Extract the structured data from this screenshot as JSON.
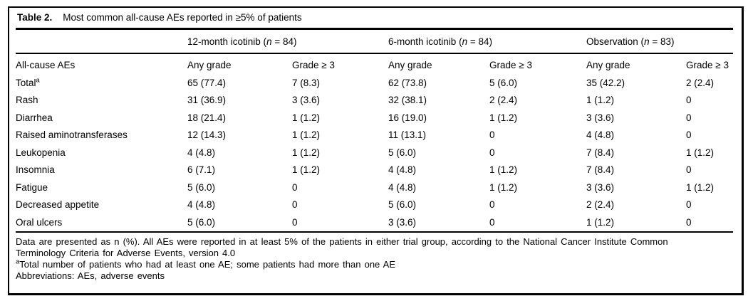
{
  "figure": {
    "label": "Table 2.",
    "caption": "Most common all-cause AEs reported in ≥5% of patients"
  },
  "table": {
    "stub_header": "All-cause AEs",
    "groups": [
      {
        "pre": "12-month icotinib (",
        "italic": "n",
        "post": " = 84)"
      },
      {
        "pre": "6-month icotinib (",
        "italic": "n",
        "post": " = 84)"
      },
      {
        "pre": "Observation (",
        "italic": "n",
        "post": " = 83)"
      }
    ],
    "subheaders": [
      "Any grade",
      "Grade ≥ 3"
    ],
    "rows": [
      {
        "label": "Total",
        "label_sup": "a",
        "values": [
          "65 (77.4)",
          "7 (8.3)",
          "62 (73.8)",
          "5 (6.0)",
          "35 (42.2)",
          "2 (2.4)"
        ]
      },
      {
        "label": "Rash",
        "label_sup": "",
        "values": [
          "31 (36.9)",
          "3 (3.6)",
          "32 (38.1)",
          "2 (2.4)",
          "1 (1.2)",
          "0"
        ]
      },
      {
        "label": "Diarrhea",
        "label_sup": "",
        "values": [
          "18 (21.4)",
          "1 (1.2)",
          "16 (19.0)",
          "1 (1.2)",
          "3 (3.6)",
          "0"
        ]
      },
      {
        "label": "Raised aminotransferases",
        "label_sup": "",
        "values": [
          "12 (14.3)",
          "1 (1.2)",
          "11 (13.1)",
          "0",
          "4 (4.8)",
          "0"
        ]
      },
      {
        "label": "Leukopenia",
        "label_sup": "",
        "values": [
          "4 (4.8)",
          "1 (1.2)",
          "5 (6.0)",
          "0",
          "7 (8.4)",
          "1 (1.2)"
        ]
      },
      {
        "label": "Insomnia",
        "label_sup": "",
        "values": [
          "6 (7.1)",
          "1 (1.2)",
          "4 (4.8)",
          "1 (1.2)",
          "7 (8.4)",
          "0"
        ]
      },
      {
        "label": "Fatigue",
        "label_sup": "",
        "values": [
          "5 (6.0)",
          "0",
          "4 (4.8)",
          "1 (1.2)",
          "3 (3.6)",
          "1 (1.2)"
        ]
      },
      {
        "label": "Decreased appetite",
        "label_sup": "",
        "values": [
          "4 (4.8)",
          "0",
          "5 (6.0)",
          "0",
          "2 (2.4)",
          "0"
        ]
      },
      {
        "label": "Oral ulcers",
        "label_sup": "",
        "values": [
          "5 (6.0)",
          "0",
          "3 (3.6)",
          "0",
          "1 (1.2)",
          "0"
        ]
      }
    ]
  },
  "footnotes": {
    "general_line1": "Data are presented as n (%). All AEs were reported in at least 5% of the patients in either trial group, according to the National Cancer Institute Common",
    "general_line2": "Terminology Criteria for Adverse Events, version 4.0",
    "note_a_sup": "a",
    "note_a_text": "Total number of patients who had at least one AE; some patients had more than one AE",
    "abbreviations": "Abbreviations: AEs, adverse events"
  },
  "colors": {
    "text": "#000000",
    "background": "#ffffff",
    "rules": "#000000"
  }
}
